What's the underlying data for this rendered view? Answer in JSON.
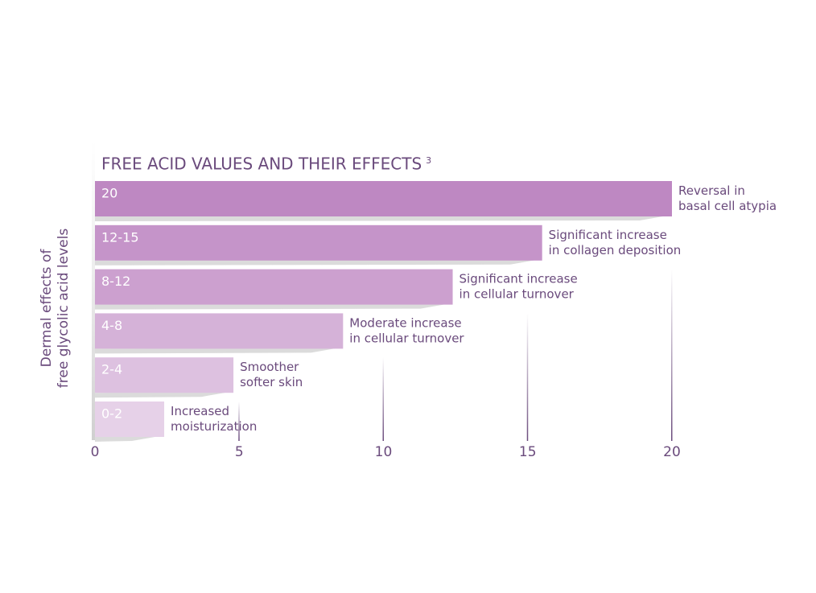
{
  "chart_data": {
    "type": "bar",
    "orientation": "horizontal",
    "title": "FREE ACID VALUES AND THEIR EFFECTS",
    "title_superscript": "3",
    "y_label": [
      "Dermal effects of",
      "free glycolic acid levels"
    ],
    "categories": [
      "20",
      "12-15",
      "8-12",
      "4-8",
      "2-4",
      "0-2"
    ],
    "values": [
      20,
      15.5,
      12.4,
      8.6,
      4.8,
      2.4
    ],
    "colors": [
      "#be88c2",
      "#c594c9",
      "#cca0cf",
      "#d5b2d8",
      "#ddc1e0",
      "#e6d1e8"
    ],
    "annotations": [
      [
        "Reversal in",
        "basal cell atypia"
      ],
      [
        "Significant increase",
        "in collagen deposition"
      ],
      [
        "Significant increase",
        "in cellular turnover"
      ],
      [
        "Moderate increase",
        "in cellular turnover"
      ],
      [
        "Smoother",
        "softer skin"
      ],
      [
        "Increased",
        "moisturization"
      ]
    ],
    "xlim": [
      0,
      20
    ],
    "xticks": [
      0,
      5,
      10,
      15,
      20
    ]
  }
}
